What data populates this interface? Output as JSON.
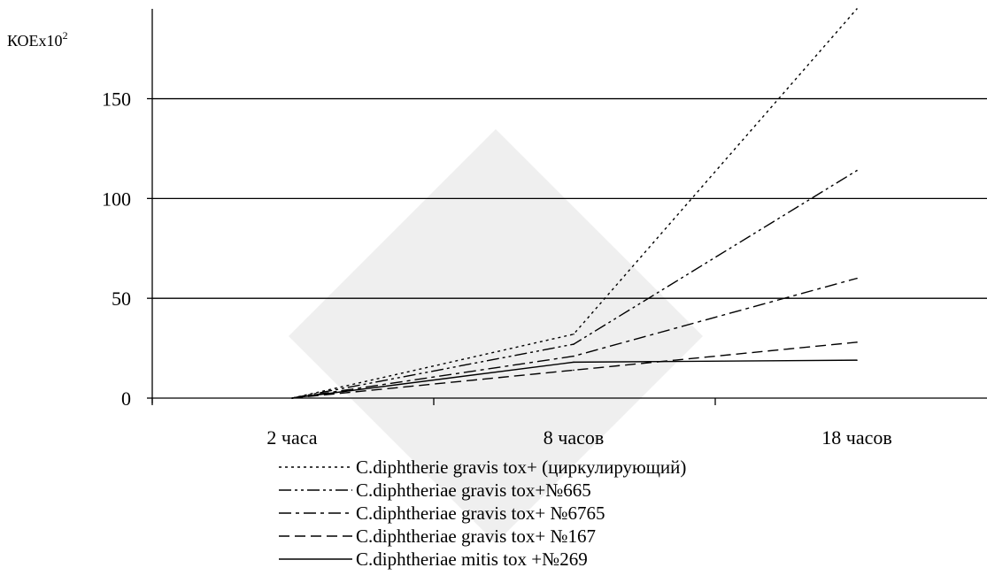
{
  "chart_data": {
    "type": "line",
    "ylabel": "КОЕх10",
    "ylabel_sup": "2",
    "categories": [
      "2 часа",
      "8 часов",
      "18 часов"
    ],
    "ylim": [
      0,
      195
    ],
    "yticks": [
      0,
      50,
      100,
      150
    ],
    "grid": "horizontal",
    "legend_position": "bottom",
    "series": [
      {
        "name": "C.diphtherie gravis tox+ (циркулирующий)",
        "style": "dotted",
        "values": [
          0,
          32,
          195
        ]
      },
      {
        "name": "C.diphtheriae gravis tox+№665",
        "style": "dash-dot-dot",
        "values": [
          0,
          27,
          114
        ]
      },
      {
        "name": "C.diphtheriae gravis tox+ №6765",
        "style": "dash-dot",
        "values": [
          0,
          21,
          60
        ]
      },
      {
        "name": "C.diphtheriae gravis tox+ №167",
        "style": "dashed",
        "values": [
          0,
          14,
          28
        ]
      },
      {
        "name": "C.diphtheriae mitis tox +№269",
        "style": "solid",
        "values": [
          0,
          18,
          19
        ]
      }
    ]
  }
}
